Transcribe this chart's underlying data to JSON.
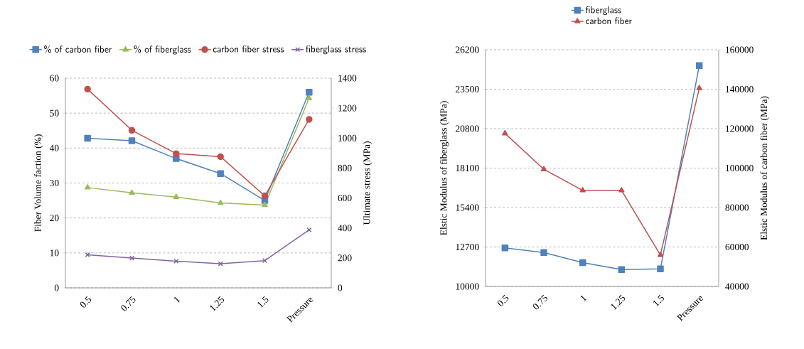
{
  "chart_data": [
    {
      "type": "line",
      "categories": [
        "0.5",
        "0.75",
        "1",
        "1.25",
        "1.5",
        "Pressure"
      ],
      "ylabel": "Fiber Volume faction (%)",
      "y2label": "Ultimate  stress (MPa)",
      "ylim": [
        0,
        60
      ],
      "yticks": [
        0,
        10,
        20,
        30,
        40,
        50,
        60
      ],
      "y2lim": [
        0,
        1400
      ],
      "y2ticks": [
        0,
        200,
        400,
        600,
        800,
        1000,
        1200,
        1400
      ],
      "grid": "y",
      "legend": "top",
      "series": [
        {
          "name": "% of carbon fiber",
          "color": "#4f81bd",
          "marker": "square",
          "values": [
            42.8,
            42.1,
            37,
            32.7,
            25,
            56
          ]
        },
        {
          "name": "% of fiberglass",
          "color": "#9bbb59",
          "marker": "triangle",
          "values": [
            28.7,
            27.2,
            26,
            24.3,
            23.7,
            54.3
          ]
        },
        {
          "name": "carbon fiber stress",
          "color": "#c0504d",
          "marker": "circle",
          "axis": "y2",
          "values": [
            1327,
            1052,
            896,
            876,
            614,
            1125
          ]
        },
        {
          "name": "fiberglass stress",
          "color": "#8064a2",
          "marker": "cross",
          "axis": "y2",
          "values": [
            221,
            199,
            178,
            161,
            182,
            387
          ]
        }
      ]
    },
    {
      "type": "line",
      "categories": [
        "0.5",
        "0.75",
        "1",
        "1.25",
        "1.5",
        "Pressure"
      ],
      "ylabel": "Elstic Modulus of fiberglass (MPa)",
      "y2label": "Elstic Modulus of carbon fiber (MPa)",
      "ylim": [
        10000,
        26200
      ],
      "yticks": [
        10000,
        12700,
        15400,
        18100,
        20800,
        23500,
        26200
      ],
      "y2lim": [
        40000,
        160000
      ],
      "y2ticks": [
        40000,
        60000,
        80000,
        100000,
        120000,
        140000,
        160000
      ],
      "grid": "y",
      "legend": "top",
      "series": [
        {
          "name": "fiberglass",
          "color": "#4f81bd",
          "marker": "square",
          "values": [
            12640,
            12320,
            11630,
            11150,
            11200,
            25120
          ]
        },
        {
          "name": "carbon fiber",
          "color": "#c0504d",
          "marker": "triangle",
          "axis": "y2",
          "values": [
            117600,
            99400,
            88700,
            88700,
            55900,
            140500
          ]
        }
      ]
    }
  ]
}
